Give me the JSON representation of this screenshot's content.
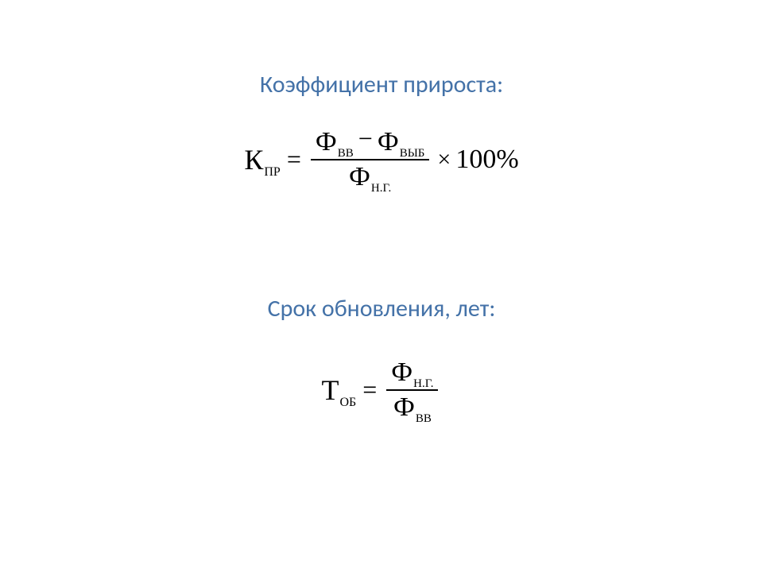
{
  "headings": {
    "growth_coefficient": "Коэффициент прироста:",
    "renewal_period": "Срок обновления, лет:"
  },
  "formula1": {
    "lhs_symbol": "К",
    "lhs_sub": "ПР",
    "equals": "=",
    "num_term1_symbol": "Ф",
    "num_term1_sub": "ВВ",
    "minus": "−",
    "num_term2_symbol": "Ф",
    "num_term2_sub": "ВЫБ",
    "denom_symbol": "Ф",
    "denom_sub": "Н.Г.",
    "times": "×",
    "percent": "100%"
  },
  "formula2": {
    "lhs_symbol": "Т",
    "lhs_sub": "ОБ",
    "equals": "=",
    "num_symbol": "Ф",
    "num_sub": "Н.Г.",
    "denom_symbol": "Ф",
    "denom_sub": "ВВ"
  },
  "colors": {
    "heading_color": "#4472a8",
    "formula_color": "#000000",
    "background": "#ffffff"
  },
  "typography": {
    "heading_fontsize": 30,
    "main_symbol_fontsize": 36,
    "subscript_fontsize": 16,
    "heading_font": "Calibri",
    "formula_font": "Times New Roman"
  }
}
